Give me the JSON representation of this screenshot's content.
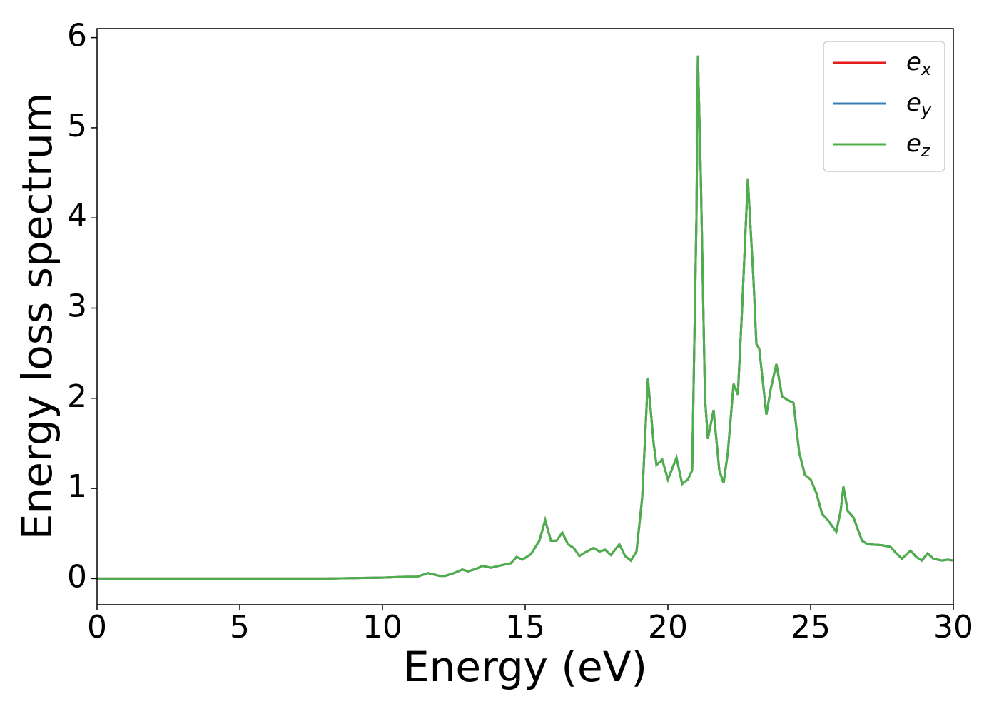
{
  "chart_data": {
    "type": "line",
    "x_label": "Energy (eV)",
    "y_label": "Energy loss spectrum",
    "x": [
      0,
      5,
      8,
      10,
      10.8,
      11.2,
      11.6,
      12.0,
      12.2,
      12.5,
      12.8,
      13.0,
      13.3,
      13.5,
      13.8,
      14.2,
      14.5,
      14.7,
      14.9,
      15.2,
      15.5,
      15.7,
      15.9,
      16.1,
      16.3,
      16.5,
      16.7,
      16.9,
      17.1,
      17.4,
      17.6,
      17.8,
      18.0,
      18.3,
      18.5,
      18.7,
      18.9,
      19.1,
      19.3,
      19.5,
      19.6,
      19.8,
      20.0,
      20.3,
      20.5,
      20.7,
      20.85,
      21.0,
      21.05,
      21.15,
      21.3,
      21.4,
      21.6,
      21.8,
      21.95,
      22.1,
      22.3,
      22.45,
      22.6,
      22.8,
      23.0,
      23.1,
      23.2,
      23.45,
      23.6,
      23.8,
      24.0,
      24.2,
      24.4,
      24.6,
      24.8,
      25.0,
      25.2,
      25.4,
      25.6,
      25.9,
      26.05,
      26.15,
      26.3,
      26.5,
      26.8,
      27.0,
      27.5,
      27.8,
      28.0,
      28.2,
      28.5,
      28.7,
      28.9,
      29.1,
      29.3,
      29.6,
      29.8,
      30.0
    ],
    "series": [
      {
        "name": "ex",
        "color": "#e41a1c",
        "values": [
          0,
          0,
          0,
          0.01,
          0.02,
          0.02,
          0.06,
          0.03,
          0.03,
          0.06,
          0.1,
          0.08,
          0.11,
          0.14,
          0.12,
          0.15,
          0.17,
          0.24,
          0.21,
          0.27,
          0.42,
          0.65,
          0.42,
          0.42,
          0.51,
          0.38,
          0.34,
          0.25,
          0.29,
          0.34,
          0.3,
          0.32,
          0.26,
          0.38,
          0.25,
          0.2,
          0.3,
          0.9,
          2.22,
          1.5,
          1.26,
          1.32,
          1.1,
          1.34,
          1.05,
          1.1,
          1.2,
          4.0,
          5.8,
          4.5,
          2.0,
          1.55,
          1.87,
          1.2,
          1.06,
          1.4,
          2.16,
          2.04,
          3.0,
          4.43,
          3.3,
          2.6,
          2.55,
          1.82,
          2.1,
          2.38,
          2.02,
          1.98,
          1.95,
          1.4,
          1.15,
          1.1,
          0.95,
          0.72,
          0.65,
          0.52,
          0.75,
          1.02,
          0.75,
          0.68,
          0.42,
          0.38,
          0.37,
          0.35,
          0.28,
          0.22,
          0.31,
          0.24,
          0.2,
          0.28,
          0.22,
          0.2,
          0.21,
          0.2
        ]
      },
      {
        "name": "ey",
        "color": "#377eb8",
        "values": [
          0,
          0,
          0,
          0.01,
          0.02,
          0.02,
          0.06,
          0.03,
          0.03,
          0.06,
          0.1,
          0.08,
          0.11,
          0.14,
          0.12,
          0.15,
          0.17,
          0.24,
          0.21,
          0.27,
          0.42,
          0.65,
          0.42,
          0.42,
          0.51,
          0.38,
          0.34,
          0.25,
          0.29,
          0.34,
          0.3,
          0.32,
          0.26,
          0.38,
          0.25,
          0.2,
          0.3,
          0.9,
          2.22,
          1.5,
          1.26,
          1.32,
          1.1,
          1.34,
          1.05,
          1.1,
          1.2,
          4.0,
          5.8,
          4.5,
          2.0,
          1.55,
          1.87,
          1.2,
          1.06,
          1.4,
          2.16,
          2.04,
          3.0,
          4.43,
          3.3,
          2.6,
          2.55,
          1.82,
          2.1,
          2.38,
          2.02,
          1.98,
          1.95,
          1.4,
          1.15,
          1.1,
          0.95,
          0.72,
          0.65,
          0.52,
          0.75,
          1.02,
          0.75,
          0.68,
          0.42,
          0.38,
          0.37,
          0.35,
          0.28,
          0.22,
          0.31,
          0.24,
          0.2,
          0.28,
          0.22,
          0.2,
          0.21,
          0.2
        ]
      },
      {
        "name": "ez",
        "color": "#4daf4a",
        "values": [
          0,
          0,
          0,
          0.01,
          0.02,
          0.02,
          0.06,
          0.03,
          0.03,
          0.06,
          0.1,
          0.08,
          0.11,
          0.14,
          0.12,
          0.15,
          0.17,
          0.24,
          0.21,
          0.27,
          0.42,
          0.65,
          0.42,
          0.42,
          0.51,
          0.38,
          0.34,
          0.25,
          0.29,
          0.34,
          0.3,
          0.32,
          0.26,
          0.38,
          0.25,
          0.2,
          0.3,
          0.9,
          2.22,
          1.5,
          1.26,
          1.32,
          1.1,
          1.34,
          1.05,
          1.1,
          1.2,
          4.0,
          5.8,
          4.5,
          2.0,
          1.55,
          1.87,
          1.2,
          1.06,
          1.4,
          2.16,
          2.04,
          3.0,
          4.43,
          3.3,
          2.6,
          2.55,
          1.82,
          2.1,
          2.38,
          2.02,
          1.98,
          1.95,
          1.4,
          1.15,
          1.1,
          0.95,
          0.72,
          0.65,
          0.52,
          0.75,
          1.02,
          0.75,
          0.68,
          0.42,
          0.38,
          0.37,
          0.35,
          0.28,
          0.22,
          0.31,
          0.24,
          0.2,
          0.28,
          0.22,
          0.2,
          0.21,
          0.2
        ]
      }
    ],
    "xlim": [
      0,
      30
    ],
    "xticks": [
      0,
      5,
      10,
      15,
      20,
      25,
      30
    ],
    "ylim": [
      -0.29,
      6.1
    ],
    "yticks": [
      0,
      1,
      2,
      3,
      4,
      5,
      6
    ],
    "grid": false,
    "legend": "upper right"
  }
}
